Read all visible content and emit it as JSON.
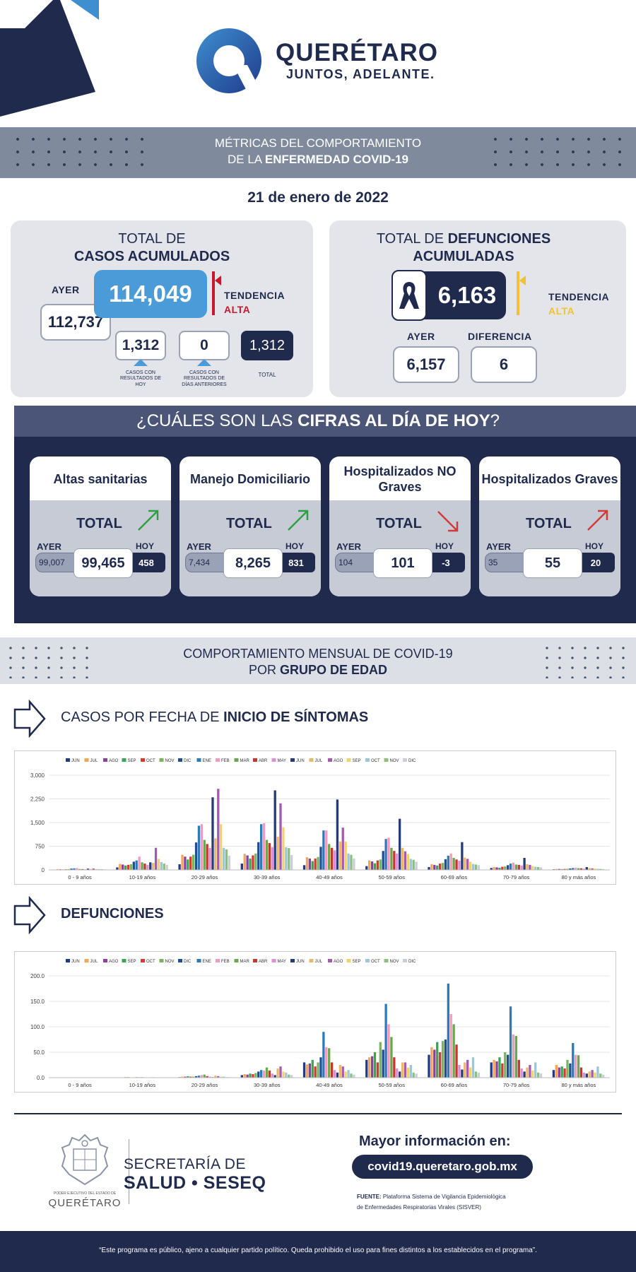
{
  "header": {
    "brand": "QUERÉTARO",
    "slogan": "JUNTOS, ADELANTE.",
    "title_line1": "MÉTRICAS DEL COMPORTAMIENTO",
    "title_line2_pre": "DE LA ",
    "title_line2_bold": "ENFERMEDAD COVID-19",
    "date": "21 de enero de 2022"
  },
  "casos": {
    "title1": "TOTAL DE",
    "title2": "CASOS ACUMULADOS",
    "ayer_label": "AYER",
    "ayer_value": "112,737",
    "total": "114,049",
    "tendencia": "TENDENCIA",
    "tendencia_value": "ALTA",
    "hoy_value": "1,312",
    "hoy_caption": "CASOS CON RESULTADOS DE HOY",
    "anteriores_value": "0",
    "anteriores_caption": "CASOS CON RESULTADOS DE DÍAS ANTERIORES",
    "total_value": "1,312",
    "total_caption": "TOTAL"
  },
  "defunciones": {
    "title1_pre": "TOTAL DE ",
    "title1_bold": "DEFUNCIONES",
    "title2": "ACUMULADAS",
    "total": "6,163",
    "tendencia": "TENDENCIA",
    "tendencia_value": "ALTA",
    "ayer_label": "AYER",
    "ayer_value": "6,157",
    "diferencia_label": "DIFERENCIA",
    "diferencia_value": "6"
  },
  "hoy_section": {
    "title_pre": "¿CUÁLES SON LAS ",
    "title_bold": "CIFRAS AL DÍA DE HOY",
    "title_post": "?",
    "cards": [
      {
        "title": "Altas sanitarias",
        "total_label": "TOTAL",
        "ayer_label": "AYER",
        "hoy_label": "HOY",
        "ayer": "99,007",
        "total": "99,465",
        "hoy": "458",
        "trend": "up",
        "trend_color": "#2e9e44"
      },
      {
        "title": "Manejo Domiciliario",
        "total_label": "TOTAL",
        "ayer_label": "AYER",
        "hoy_label": "HOY",
        "ayer": "7,434",
        "total": "8,265",
        "hoy": "831",
        "trend": "up",
        "trend_color": "#2e9e44"
      },
      {
        "title": "Hospitalizados NO Graves",
        "total_label": "TOTAL",
        "ayer_label": "AYER",
        "hoy_label": "HOY",
        "ayer": "104",
        "total": "101",
        "hoy": "-3",
        "trend": "down",
        "trend_color": "#d23a3a"
      },
      {
        "title": "Hospitalizados Graves",
        "total_label": "TOTAL",
        "ayer_label": "AYER",
        "hoy_label": "HOY",
        "ayer": "35",
        "total": "55",
        "hoy": "20",
        "trend": "up",
        "trend_color": "#d23a3a"
      }
    ]
  },
  "mensual": {
    "title_line1": "COMPORTAMIENTO MENSUAL DE COVID-19",
    "title_line2_pre": "POR ",
    "title_line2_bold": "GRUPO DE EDAD",
    "casos_title_pre": "CASOS POR FECHA DE ",
    "casos_title_bold": "INICIO  DE SÍNTOMAS",
    "defunciones_title": "DEFUNCIONES"
  },
  "chart_data": [
    {
      "type": "bar",
      "title": "CASOS POR FECHA DE INICIO DE SÍNTOMAS",
      "categories": [
        "0 - 9 años",
        "10-19 años",
        "20-29 años",
        "30-39 años",
        "40-49 años",
        "50-59 años",
        "60-69 años",
        "70-79 años",
        "80 y más años"
      ],
      "ylim": [
        0,
        3000
      ],
      "yticks": [
        "0",
        "750",
        "1,500",
        "2,250",
        "3,000"
      ],
      "ytick_values": [
        0,
        750,
        1500,
        2250,
        3000
      ],
      "legend_position": "top",
      "series": [
        {
          "name": "JUN",
          "color": "#1f3a8a",
          "values": [
            10,
            80,
            180,
            200,
            150,
            120,
            90,
            60,
            20
          ]
        },
        {
          "name": "JUL",
          "color": "#f2a65a",
          "values": [
            25,
            190,
            480,
            510,
            400,
            300,
            180,
            90,
            30
          ]
        },
        {
          "name": "AGO",
          "color": "#8e3e9e",
          "values": [
            20,
            170,
            420,
            460,
            360,
            270,
            160,
            80,
            30
          ]
        },
        {
          "name": "SEP",
          "color": "#3aa655",
          "values": [
            15,
            140,
            330,
            360,
            280,
            210,
            140,
            70,
            25
          ]
        },
        {
          "name": "OCT",
          "color": "#d43b2f",
          "values": [
            20,
            160,
            420,
            460,
            360,
            300,
            200,
            100,
            30
          ]
        },
        {
          "name": "NOV",
          "color": "#7ab55c",
          "values": [
            25,
            180,
            480,
            520,
            410,
            330,
            220,
            110,
            35
          ]
        },
        {
          "name": "DIC",
          "color": "#1d4f91",
          "values": [
            40,
            260,
            870,
            880,
            730,
            600,
            340,
            150,
            45
          ]
        },
        {
          "name": "ENE",
          "color": "#2b7bb9",
          "values": [
            50,
            300,
            1400,
            1450,
            1250,
            980,
            450,
            200,
            60
          ]
        },
        {
          "name": "FEB",
          "color": "#f29bbf",
          "values": [
            60,
            420,
            1450,
            1480,
            1250,
            1020,
            520,
            230,
            70
          ]
        },
        {
          "name": "MAR",
          "color": "#69a84f",
          "values": [
            30,
            240,
            950,
            950,
            820,
            700,
            380,
            170,
            55
          ]
        },
        {
          "name": "ABR",
          "color": "#c0392b",
          "values": [
            25,
            200,
            820,
            850,
            700,
            600,
            330,
            160,
            50
          ]
        },
        {
          "name": "MAY",
          "color": "#d98fd4",
          "values": [
            20,
            160,
            700,
            720,
            620,
            520,
            290,
            140,
            40
          ]
        },
        {
          "name": "JUN",
          "color": "#263c78",
          "values": [
            40,
            240,
            2300,
            2520,
            2230,
            1620,
            880,
            380,
            90
          ]
        },
        {
          "name": "JUL",
          "color": "#e8b96b",
          "values": [
            30,
            220,
            1000,
            1050,
            900,
            700,
            390,
            180,
            60
          ]
        },
        {
          "name": "AGO",
          "color": "#a35bb0",
          "values": [
            45,
            700,
            2570,
            2110,
            1340,
            590,
            350,
            160,
            50
          ]
        },
        {
          "name": "SEP",
          "color": "#f1d36b",
          "values": [
            30,
            350,
            1450,
            1350,
            900,
            500,
            260,
            120,
            45
          ]
        },
        {
          "name": "OCT",
          "color": "#9dc7d8",
          "values": [
            25,
            250,
            700,
            720,
            520,
            350,
            190,
            100,
            35
          ]
        },
        {
          "name": "NOV",
          "color": "#8dbf7c",
          "values": [
            20,
            200,
            650,
            690,
            480,
            320,
            170,
            90,
            30
          ]
        },
        {
          "name": "DIC",
          "color": "#c9ced8",
          "values": [
            15,
            160,
            450,
            470,
            360,
            260,
            150,
            80,
            25
          ]
        }
      ]
    },
    {
      "type": "bar",
      "title": "DEFUNCIONES",
      "categories": [
        "0 - 9 años",
        "10-19 años",
        "20-29 años",
        "30-39 años",
        "40-49 años",
        "50-59 años",
        "60-69 años",
        "70-79 años",
        "80 y más años"
      ],
      "ylim": [
        0,
        200
      ],
      "yticks": [
        "0.0",
        "50.0",
        "100.0",
        "150.0",
        "200.0"
      ],
      "ytick_values": [
        0,
        50,
        100,
        150,
        200
      ],
      "legend_position": "top",
      "series": [
        {
          "name": "JUN",
          "color": "#1f3a8a",
          "values": [
            0,
            0,
            1,
            5,
            30,
            35,
            45,
            30,
            15
          ]
        },
        {
          "name": "JUL",
          "color": "#f2a65a",
          "values": [
            0,
            0,
            2,
            7,
            26,
            40,
            60,
            35,
            25
          ]
        },
        {
          "name": "AGO",
          "color": "#8e3e9e",
          "values": [
            0,
            0,
            2,
            6,
            28,
            42,
            55,
            32,
            20
          ]
        },
        {
          "name": "SEP",
          "color": "#3aa655",
          "values": [
            0,
            1,
            3,
            8,
            35,
            50,
            70,
            40,
            22
          ]
        },
        {
          "name": "OCT",
          "color": "#d43b2f",
          "values": [
            0,
            1,
            2,
            7,
            22,
            30,
            50,
            28,
            18
          ]
        },
        {
          "name": "NOV",
          "color": "#7ab55c",
          "values": [
            0,
            0,
            2,
            9,
            30,
            70,
            72,
            50,
            35
          ]
        },
        {
          "name": "DIC",
          "color": "#1d4f91",
          "values": [
            0,
            0,
            3,
            12,
            40,
            55,
            75,
            45,
            28
          ]
        },
        {
          "name": "ENE",
          "color": "#2b7bb9",
          "values": [
            0,
            1,
            4,
            15,
            90,
            145,
            185,
            140,
            68
          ]
        },
        {
          "name": "FEB",
          "color": "#f29bbf",
          "values": [
            0,
            1,
            5,
            14,
            60,
            105,
            125,
            85,
            45
          ]
        },
        {
          "name": "MAR",
          "color": "#69a84f",
          "values": [
            0,
            1,
            6,
            20,
            58,
            80,
            105,
            82,
            44
          ]
        },
        {
          "name": "ABR",
          "color": "#c0392b",
          "values": [
            0,
            0,
            3,
            14,
            30,
            40,
            65,
            35,
            20
          ]
        },
        {
          "name": "MAY",
          "color": "#d98fd4",
          "values": [
            0,
            0,
            2,
            8,
            15,
            18,
            25,
            18,
            10
          ]
        },
        {
          "name": "JUN",
          "color": "#263c78",
          "values": [
            0,
            0,
            1,
            5,
            10,
            12,
            16,
            12,
            8
          ]
        },
        {
          "name": "JUL",
          "color": "#e8b96b",
          "values": [
            0,
            1,
            4,
            18,
            25,
            30,
            30,
            20,
            12
          ]
        },
        {
          "name": "AGO",
          "color": "#a35bb0",
          "values": [
            0,
            0,
            3,
            22,
            22,
            30,
            35,
            25,
            15
          ]
        },
        {
          "name": "SEP",
          "color": "#f1d36b",
          "values": [
            0,
            0,
            2,
            12,
            12,
            20,
            20,
            14,
            10
          ]
        },
        {
          "name": "OCT",
          "color": "#9dc7d8",
          "values": [
            0,
            0,
            2,
            10,
            15,
            25,
            40,
            30,
            22
          ]
        },
        {
          "name": "NOV",
          "color": "#8dbf7c",
          "values": [
            0,
            0,
            1,
            6,
            8,
            10,
            12,
            10,
            8
          ]
        },
        {
          "name": "DIC",
          "color": "#c9ced8",
          "values": [
            0,
            0,
            1,
            5,
            6,
            8,
            10,
            8,
            6
          ]
        }
      ]
    }
  ],
  "footer": {
    "secretaria1": "SECRETARÍA DE",
    "secretaria2": "SALUD • SESEQ",
    "seal_caption1": "PODER EJECUTIVO DEL ESTADO DE",
    "seal_caption2": "QUERÉTARO",
    "mas_info": "Mayor información en:",
    "url": "covid19.queretaro.gob.mx",
    "fuente_label": "FUENTE:",
    "fuente_text1": "Plataforma Sistema  de Vigilancia Epidemiológica",
    "fuente_text2": "de Enfermedades Respiratorias Virales (SISVER)",
    "disclaimer": "“Este programa es público, ajeno a cualquier partido político. Queda prohibido el uso para fines distintos a los establecidos en el programa”."
  },
  "colors": {
    "navy": "#1f2a4d",
    "accent_blue": "#3f8fd0",
    "alert_red": "#c8192b",
    "trend_yellow": "#f1c232"
  },
  "icons": [
    "q-logo-icon",
    "ribbon-icon",
    "arrow-right-outline-icon",
    "trend-up-icon",
    "trend-down-icon",
    "state-seal-icon"
  ]
}
